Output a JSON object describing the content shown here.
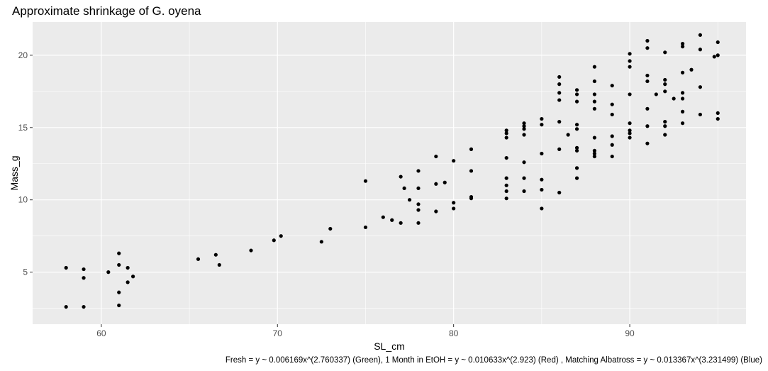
{
  "chart_data": {
    "type": "scatter",
    "title": "Approximate shrinkage of G. oyena",
    "xlabel": "SL_cm",
    "ylabel": "Mass_g",
    "caption": "Fresh = y ~ 0.006169x^(2.760337) (Green), 1 Month in EtOH = y ~ 0.010633x^(2.923) (Red) , Matching Albatross = y ~ 0.013367x^(3.231499) (Blue)",
    "xlim": [
      56.1,
      96.6
    ],
    "ylim": [
      1.4,
      22.3
    ],
    "x_ticks": [
      60,
      70,
      80,
      90
    ],
    "y_ticks": [
      5,
      10,
      15,
      20
    ],
    "grid": true,
    "panel_background": "#ebebeb",
    "grid_color": "#ffffff",
    "point_color": "#000000",
    "points": [
      [
        58,
        5.3
      ],
      [
        58,
        2.6
      ],
      [
        59,
        5.2
      ],
      [
        59,
        4.6
      ],
      [
        59,
        2.6
      ],
      [
        60.4,
        5.0
      ],
      [
        61,
        6.3
      ],
      [
        61,
        5.5
      ],
      [
        61,
        3.6
      ],
      [
        61,
        2.7
      ],
      [
        61.5,
        5.3
      ],
      [
        61.5,
        4.3
      ],
      [
        61.8,
        4.7
      ],
      [
        65.5,
        5.9
      ],
      [
        66.5,
        6.2
      ],
      [
        66.7,
        5.5
      ],
      [
        68.5,
        6.5
      ],
      [
        69.8,
        7.2
      ],
      [
        70.2,
        7.5
      ],
      [
        72.5,
        7.1
      ],
      [
        73,
        8.0
      ],
      [
        75,
        11.3
      ],
      [
        75,
        8.1
      ],
      [
        76,
        8.8
      ],
      [
        76.5,
        8.6
      ],
      [
        77,
        11.6
      ],
      [
        77,
        8.4
      ],
      [
        77.2,
        10.8
      ],
      [
        77.5,
        10.0
      ],
      [
        78,
        12.0
      ],
      [
        78,
        10.8
      ],
      [
        78,
        9.7
      ],
      [
        78,
        9.3
      ],
      [
        78,
        8.4
      ],
      [
        79,
        13.0
      ],
      [
        79,
        11.1
      ],
      [
        79,
        9.2
      ],
      [
        79.5,
        11.2
      ],
      [
        80,
        12.7
      ],
      [
        80,
        9.8
      ],
      [
        80,
        9.4
      ],
      [
        81,
        13.5
      ],
      [
        81,
        12.0
      ],
      [
        81,
        10.2
      ],
      [
        81,
        10.1
      ],
      [
        83,
        14.8
      ],
      [
        83,
        14.6
      ],
      [
        83,
        14.3
      ],
      [
        83,
        12.9
      ],
      [
        83,
        11.5
      ],
      [
        83,
        11.0
      ],
      [
        83,
        10.6
      ],
      [
        83,
        10.1
      ],
      [
        84,
        15.3
      ],
      [
        84,
        15.1
      ],
      [
        84,
        14.9
      ],
      [
        84,
        14.5
      ],
      [
        84,
        12.6
      ],
      [
        84,
        11.5
      ],
      [
        84,
        10.6
      ],
      [
        85,
        15.6
      ],
      [
        85,
        15.2
      ],
      [
        85,
        13.2
      ],
      [
        85,
        11.4
      ],
      [
        85,
        10.7
      ],
      [
        85,
        9.4
      ],
      [
        86,
        18.5
      ],
      [
        86,
        18.0
      ],
      [
        86,
        17.4
      ],
      [
        86,
        16.9
      ],
      [
        86,
        15.4
      ],
      [
        86,
        13.5
      ],
      [
        86,
        10.5
      ],
      [
        86.5,
        14.5
      ],
      [
        87,
        17.6
      ],
      [
        87,
        17.3
      ],
      [
        87,
        16.8
      ],
      [
        87,
        15.2
      ],
      [
        87,
        14.9
      ],
      [
        87,
        13.6
      ],
      [
        87,
        13.4
      ],
      [
        87,
        12.2
      ],
      [
        87,
        11.5
      ],
      [
        88,
        19.2
      ],
      [
        88,
        18.2
      ],
      [
        88,
        17.3
      ],
      [
        88,
        16.8
      ],
      [
        88,
        16.3
      ],
      [
        88,
        14.3
      ],
      [
        88,
        13.4
      ],
      [
        88,
        13.2
      ],
      [
        88,
        13.0
      ],
      [
        89,
        17.9
      ],
      [
        89,
        16.6
      ],
      [
        89,
        15.9
      ],
      [
        89,
        14.4
      ],
      [
        89,
        13.8
      ],
      [
        89,
        13.0
      ],
      [
        90,
        20.1
      ],
      [
        90,
        19.6
      ],
      [
        90,
        19.2
      ],
      [
        90,
        17.3
      ],
      [
        90,
        15.3
      ],
      [
        90,
        14.8
      ],
      [
        90,
        14.6
      ],
      [
        90,
        14.3
      ],
      [
        91,
        21.0
      ],
      [
        91,
        20.5
      ],
      [
        91,
        18.6
      ],
      [
        91,
        18.2
      ],
      [
        91,
        16.3
      ],
      [
        91,
        15.1
      ],
      [
        91,
        13.9
      ],
      [
        91.5,
        17.3
      ],
      [
        92,
        20.2
      ],
      [
        92,
        18.3
      ],
      [
        92,
        18.0
      ],
      [
        92,
        17.5
      ],
      [
        92,
        15.4
      ],
      [
        92,
        15.1
      ],
      [
        92,
        14.5
      ],
      [
        92.5,
        17.0
      ],
      [
        93,
        20.8
      ],
      [
        93,
        20.6
      ],
      [
        93,
        18.8
      ],
      [
        93,
        17.4
      ],
      [
        93,
        17.0
      ],
      [
        93,
        16.1
      ],
      [
        93,
        15.3
      ],
      [
        93.5,
        19.0
      ],
      [
        94,
        21.4
      ],
      [
        94,
        20.4
      ],
      [
        94,
        17.8
      ],
      [
        94,
        15.9
      ],
      [
        94.8,
        19.9
      ],
      [
        95,
        20.9
      ],
      [
        95,
        20.0
      ],
      [
        95,
        16.0
      ],
      [
        95,
        15.6
      ]
    ],
    "series": [
      {
        "coefficient": 0.006169,
        "exponent": 2.760337,
        "color": "#22c41a"
      },
      {
        "coefficient": 0.010633,
        "exponent": 2.923,
        "color": "#e8140e"
      },
      {
        "coefficient": 0.013367,
        "exponent": 3.231499,
        "color": "#1818e6"
      }
    ],
    "fit_x_range": [
      58,
      95
    ]
  }
}
